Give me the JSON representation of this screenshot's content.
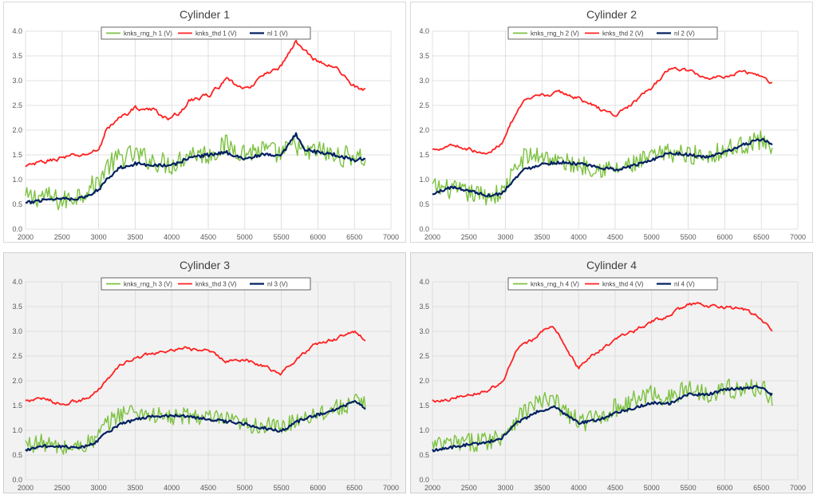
{
  "chart_data": [
    {
      "type": "line",
      "title": "Cylinder 1",
      "xlim": [
        2000,
        7000
      ],
      "ylim": [
        0,
        4
      ],
      "x_ticks": [
        2000,
        2500,
        3000,
        3500,
        4000,
        4500,
        5000,
        5500,
        6000,
        6500,
        7000
      ],
      "y_ticks": [
        "0.0",
        "0.5",
        "1.0",
        "1.5",
        "2.0",
        "2.5",
        "3.0",
        "3.5",
        "4.0"
      ],
      "grid": true,
      "legend": "top-center",
      "x": [
        2000,
        2250,
        2500,
        2750,
        2900,
        3000,
        3100,
        3300,
        3500,
        3750,
        4000,
        4250,
        4500,
        4750,
        5000,
        5250,
        5500,
        5700,
        5800,
        6000,
        6250,
        6500,
        6650
      ],
      "series": [
        {
          "name": "knks_rng_h 1 (V)",
          "color": "#7dc242",
          "values": [
            0.62,
            0.68,
            0.55,
            0.72,
            0.85,
            0.95,
            1.25,
            1.45,
            1.5,
            1.38,
            1.3,
            1.55,
            1.5,
            1.7,
            1.55,
            1.6,
            1.5,
            1.75,
            1.5,
            1.6,
            1.45,
            1.5,
            1.4
          ],
          "noise": 0.22
        },
        {
          "name": "knks_thd 1 (V)",
          "color": "#ff2020",
          "values": [
            1.25,
            1.35,
            1.45,
            1.48,
            1.55,
            1.6,
            2.0,
            2.25,
            2.45,
            2.4,
            2.2,
            2.6,
            2.7,
            3.0,
            2.8,
            3.1,
            3.3,
            3.8,
            3.6,
            3.4,
            3.25,
            2.9,
            2.8
          ],
          "noise": 0.06
        },
        {
          "name": "nl 1 (V)",
          "color": "#002060",
          "values": [
            0.52,
            0.6,
            0.62,
            0.62,
            0.7,
            0.8,
            1.0,
            1.25,
            1.32,
            1.3,
            1.28,
            1.45,
            1.5,
            1.55,
            1.42,
            1.5,
            1.48,
            1.92,
            1.62,
            1.55,
            1.5,
            1.4,
            1.42
          ],
          "noise": 0.035
        }
      ]
    },
    {
      "type": "line",
      "title": "Cylinder 2",
      "xlim": [
        2000,
        7000
      ],
      "ylim": [
        0,
        4
      ],
      "x_ticks": [
        2000,
        2500,
        3000,
        3500,
        4000,
        4500,
        5000,
        5500,
        6000,
        6500,
        7000
      ],
      "y_ticks": [
        "0.0",
        "0.5",
        "1.0",
        "1.5",
        "2.0",
        "2.5",
        "3.0",
        "3.5",
        "4.0"
      ],
      "grid": true,
      "legend": "top-center",
      "x": [
        2000,
        2250,
        2500,
        2750,
        2950,
        3050,
        3250,
        3500,
        3750,
        4000,
        4250,
        4500,
        4750,
        5000,
        5250,
        5500,
        5750,
        6000,
        6250,
        6500,
        6650
      ],
      "series": [
        {
          "name": "knks_rng_h 2 (V)",
          "color": "#7dc242",
          "values": [
            0.85,
            0.8,
            0.72,
            0.68,
            0.72,
            1.0,
            1.45,
            1.5,
            1.35,
            1.3,
            1.25,
            1.2,
            1.3,
            1.45,
            1.55,
            1.5,
            1.5,
            1.6,
            1.7,
            1.8,
            1.7
          ],
          "noise": 0.2
        },
        {
          "name": "knks_thd 2 (V)",
          "color": "#ff2020",
          "values": [
            1.6,
            1.72,
            1.62,
            1.5,
            1.75,
            2.1,
            2.55,
            2.7,
            2.75,
            2.65,
            2.45,
            2.3,
            2.55,
            2.85,
            3.25,
            3.2,
            3.05,
            3.1,
            3.2,
            3.1,
            2.95
          ],
          "noise": 0.05
        },
        {
          "name": "nl 2 (V)",
          "color": "#002060",
          "values": [
            0.7,
            0.85,
            0.78,
            0.68,
            0.72,
            0.9,
            1.2,
            1.32,
            1.35,
            1.32,
            1.25,
            1.2,
            1.28,
            1.4,
            1.55,
            1.5,
            1.45,
            1.55,
            1.7,
            1.82,
            1.72
          ],
          "noise": 0.03
        }
      ]
    },
    {
      "type": "line",
      "title": "Cylinder 3",
      "xlim": [
        2000,
        7000
      ],
      "ylim": [
        0,
        4
      ],
      "x_ticks": [
        2000,
        2500,
        3000,
        3500,
        4000,
        4500,
        5000,
        5500,
        6000,
        6500,
        7000
      ],
      "y_ticks": [
        "0.0",
        "0.5",
        "1.0",
        "1.5",
        "2.0",
        "2.5",
        "3.0",
        "3.5",
        "4.0"
      ],
      "grid": true,
      "legend": "top-center",
      "x": [
        2000,
        2250,
        2500,
        2750,
        2950,
        3100,
        3300,
        3500,
        3750,
        4000,
        4250,
        4500,
        4750,
        5000,
        5250,
        5500,
        5750,
        6000,
        6250,
        6500,
        6650
      ],
      "series": [
        {
          "name": "knks_rng_h 3 (V)",
          "color": "#7dc242",
          "values": [
            0.72,
            0.75,
            0.62,
            0.68,
            0.8,
            1.1,
            1.35,
            1.4,
            1.3,
            1.25,
            1.3,
            1.25,
            1.2,
            1.1,
            1.1,
            1.05,
            1.25,
            1.35,
            1.45,
            1.55,
            1.55
          ],
          "noise": 0.18
        },
        {
          "name": "knks_thd 3 (V)",
          "color": "#ff2020",
          "values": [
            1.6,
            1.62,
            1.55,
            1.6,
            1.75,
            2.0,
            2.3,
            2.45,
            2.55,
            2.6,
            2.65,
            2.6,
            2.4,
            2.45,
            2.3,
            2.15,
            2.5,
            2.75,
            2.85,
            3.0,
            2.8
          ],
          "noise": 0.05
        },
        {
          "name": "nl 3 (V)",
          "color": "#002060",
          "values": [
            0.6,
            0.68,
            0.68,
            0.65,
            0.75,
            0.95,
            1.12,
            1.22,
            1.28,
            1.3,
            1.28,
            1.22,
            1.18,
            1.12,
            1.05,
            0.98,
            1.2,
            1.32,
            1.42,
            1.58,
            1.45
          ],
          "noise": 0.03
        }
      ]
    },
    {
      "type": "line",
      "title": "Cylinder 4",
      "xlim": [
        2000,
        7000
      ],
      "ylim": [
        0,
        4
      ],
      "x_ticks": [
        2000,
        2500,
        3000,
        3500,
        4000,
        4500,
        5000,
        5500,
        6000,
        6500,
        7000
      ],
      "y_ticks": [
        "0.0",
        "0.5",
        "1.0",
        "1.5",
        "2.0",
        "2.5",
        "3.0",
        "3.5",
        "4.0"
      ],
      "grid": true,
      "legend": "top-center",
      "x": [
        2000,
        2250,
        2500,
        2750,
        2950,
        3150,
        3400,
        3650,
        3850,
        4000,
        4250,
        4500,
        4750,
        5000,
        5250,
        5500,
        5750,
        6000,
        6250,
        6500,
        6650
      ],
      "series": [
        {
          "name": "knks_rng_h 4 (V)",
          "color": "#7dc242",
          "values": [
            0.68,
            0.72,
            0.75,
            0.8,
            0.9,
            1.25,
            1.55,
            1.6,
            1.35,
            1.15,
            1.25,
            1.45,
            1.6,
            1.75,
            1.65,
            1.85,
            1.75,
            1.85,
            1.8,
            1.9,
            1.65
          ],
          "noise": 0.2
        },
        {
          "name": "knks_thd 4 (V)",
          "color": "#ff2020",
          "values": [
            1.6,
            1.65,
            1.75,
            1.8,
            1.95,
            2.6,
            2.85,
            3.15,
            2.6,
            2.25,
            2.6,
            2.8,
            3.0,
            3.2,
            3.3,
            3.55,
            3.5,
            3.5,
            3.45,
            3.25,
            3.0
          ],
          "noise": 0.05
        },
        {
          "name": "nl 4 (V)",
          "color": "#002060",
          "values": [
            0.6,
            0.65,
            0.72,
            0.75,
            0.85,
            1.15,
            1.35,
            1.48,
            1.3,
            1.15,
            1.2,
            1.35,
            1.45,
            1.55,
            1.55,
            1.72,
            1.72,
            1.82,
            1.85,
            1.88,
            1.72
          ],
          "noise": 0.03
        }
      ]
    }
  ]
}
